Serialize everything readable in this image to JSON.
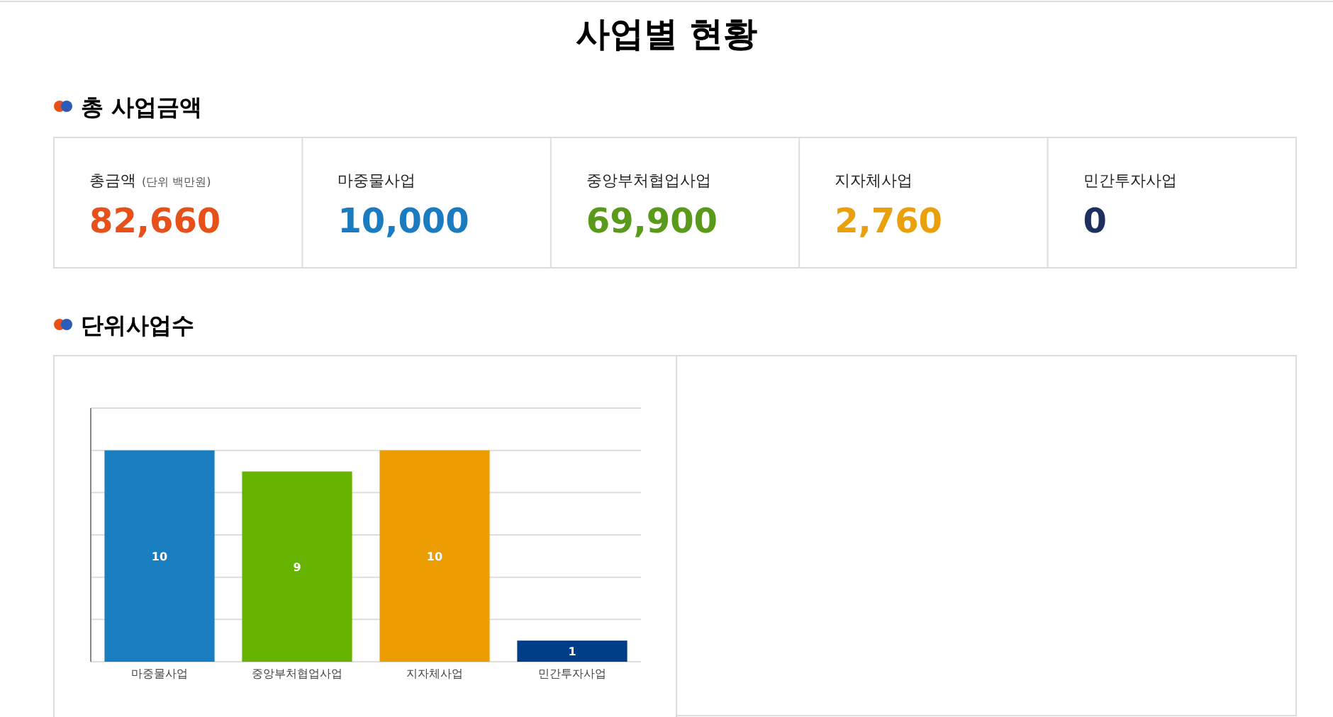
{
  "chart_data": [
    {
      "type": "other",
      "title": "사업별 현황",
      "subtitle": "총 사업금액",
      "categories": [
        "총금액",
        "마중물사업",
        "중앙부처협업사업",
        "지자체사업",
        "민간투자사업"
      ],
      "values": [
        82660,
        10000,
        69900,
        2760,
        0
      ],
      "value_labels": [
        "82,660",
        "10,000",
        "69,900",
        "2,760",
        "0"
      ],
      "colors": [
        "#e8501a",
        "#1a7bc1",
        "#5a9a1a",
        "#eaa00a",
        "#1c2f5e"
      ],
      "annotations": [
        "(단위 백만원)"
      ]
    },
    {
      "type": "bar",
      "title": "단위사업수",
      "categories": [
        "마중물사업",
        "중앙부처협업사업",
        "지자체사업",
        "민간투자사업"
      ],
      "values": [
        10,
        9,
        10,
        1
      ],
      "colors": [
        "#1a7fc1",
        "#66b200",
        "#eb9c00",
        "#003d87"
      ],
      "data_labels": true,
      "ylim": [
        0,
        12
      ],
      "yticks": [
        {
          "value": 0,
          "label": null
        },
        {
          "value": 2,
          "label": null
        },
        {
          "value": 4,
          "label": null
        },
        {
          "value": 6,
          "label": null
        },
        {
          "value": 8,
          "label": null
        },
        {
          "value": 10,
          "label": null
        },
        {
          "value": 12,
          "label": null
        }
      ],
      "grid": "y",
      "tick_labels": "x"
    }
  ]
}
